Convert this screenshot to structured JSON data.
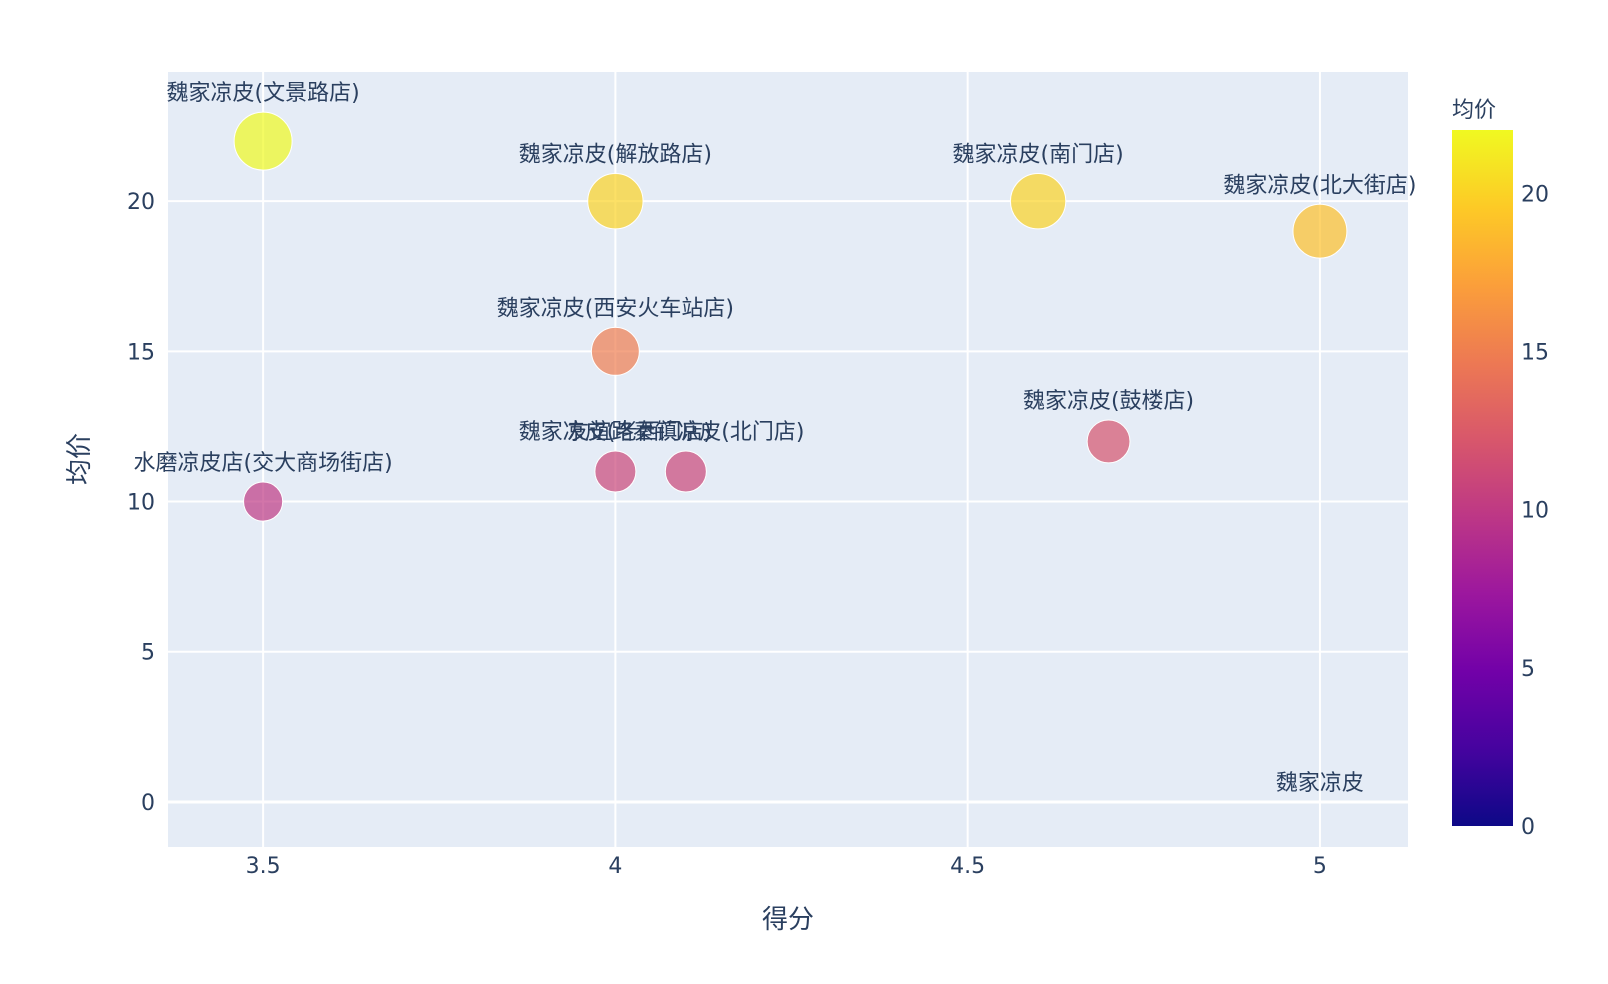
{
  "chart_data": {
    "type": "scatter",
    "xlabel": "得分",
    "ylabel": "均价",
    "xlim": [
      3.365,
      5.125
    ],
    "ylim": [
      -1.5,
      24.3
    ],
    "x_ticks": [
      3.5,
      4,
      4.5,
      5
    ],
    "x_tick_labels": [
      "3.5",
      "4",
      "4.5",
      "5"
    ],
    "y_ticks": [
      0,
      5,
      10,
      15,
      20
    ],
    "y_tick_labels": [
      "0",
      "5",
      "10",
      "15",
      "20"
    ],
    "grid": true,
    "size_by": "均价",
    "points": [
      {
        "label": "魏家凉皮(文景路店)",
        "x": 3.5,
        "y": 22
      },
      {
        "label": "魏家凉皮(解放路店)",
        "x": 4.0,
        "y": 20
      },
      {
        "label": "魏家凉皮(南门店)",
        "x": 4.6,
        "y": 20
      },
      {
        "label": "魏家凉皮(北大街店)",
        "x": 5.0,
        "y": 19
      },
      {
        "label": "魏家凉皮(西安火车站店)",
        "x": 4.0,
        "y": 15
      },
      {
        "label": "魏家凉皮(鼓楼店)",
        "x": 4.7,
        "y": 12
      },
      {
        "label": "魏家凉皮(老西门店)",
        "x": 4.0,
        "y": 11
      },
      {
        "label": "友谊路秦镇凉皮(北门店)",
        "x": 4.1,
        "y": 11
      },
      {
        "label": "水磨凉皮店(交大商场街店)",
        "x": 3.5,
        "y": 10
      },
      {
        "label": "魏家凉皮",
        "x": 5.0,
        "y": 0
      }
    ],
    "colorbar": {
      "title": "均价",
      "min": 0,
      "max": 22,
      "ticks": [
        0,
        5,
        10,
        15,
        20
      ],
      "tick_labels": [
        "0",
        "5",
        "10",
        "15",
        "20"
      ],
      "colorscale": [
        "#0d0887",
        "#46039f",
        "#7201a8",
        "#9c179e",
        "#bd3786",
        "#d8576b",
        "#ed7953",
        "#fb9f3a",
        "#fdca26",
        "#f0f921"
      ]
    },
    "colors": {
      "plot_background": "#e5ecf6",
      "grid": "#ffffff",
      "text": "#2a3f5f"
    }
  }
}
